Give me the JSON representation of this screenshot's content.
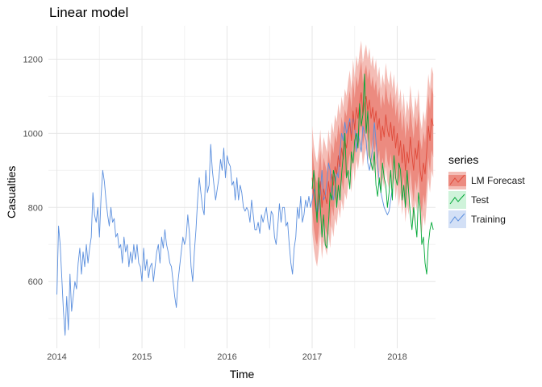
{
  "chart_data": {
    "type": "line",
    "title": "Linear model",
    "xlabel": "Time",
    "ylabel": "Casualties",
    "xlim": [
      2013.9,
      2018.45
    ],
    "ylim": [
      420,
      1290
    ],
    "x_ticks": [
      2014,
      2015,
      2016,
      2017,
      2018
    ],
    "y_ticks": [
      600,
      800,
      1000,
      1200
    ],
    "grid": true,
    "legend": {
      "title": "series",
      "position": "right"
    },
    "series": [
      {
        "name": "Training",
        "color": "#5B8FDE",
        "x_start": 2014.0,
        "x_step": 0.01923,
        "values": [
          565,
          750,
          700,
          610,
          520,
          455,
          560,
          470,
          620,
          520,
          560,
          600,
          580,
          650,
          690,
          620,
          680,
          640,
          700,
          650,
          690,
          720,
          840,
          780,
          760,
          800,
          720,
          830,
          900,
          870,
          820,
          780,
          750,
          800,
          760,
          770,
          720,
          730,
          690,
          700,
          650,
          720,
          680,
          700,
          640,
          680,
          650,
          700,
          660,
          700,
          650,
          640,
          600,
          690,
          630,
          660,
          610,
          640,
          650,
          600,
          640,
          680,
          700,
          650,
          720,
          690,
          740,
          700,
          680,
          650,
          640,
          600,
          560,
          530,
          600,
          640,
          680,
          720,
          700,
          720,
          780,
          730,
          640,
          600,
          680,
          740,
          820,
          880,
          840,
          800,
          780,
          900,
          840,
          860,
          970,
          900,
          860,
          820,
          850,
          880,
          930,
          900,
          960,
          880,
          940,
          920,
          910,
          860,
          870,
          820,
          880,
          820,
          860,
          840,
          800,
          790,
          800,
          790,
          760,
          820,
          780,
          740,
          740,
          760,
          730,
          780,
          760,
          780,
          800,
          760,
          740,
          790,
          780,
          720,
          700,
          750,
          810,
          760,
          800,
          800,
          750,
          760,
          700,
          650,
          620,
          690,
          720,
          800,
          770,
          830,
          760,
          780,
          820,
          800,
          830,
          800,
          820,
          850,
          830,
          780,
          800,
          840,
          900,
          820,
          830,
          870,
          920,
          900,
          840,
          820,
          850,
          900,
          880,
          950,
          1000,
          980,
          1030,
          1000,
          1020,
          1040,
          990,
          1040,
          1020,
          950,
          1000,
          980,
          950,
          1020,
          1000,
          980,
          920,
          900,
          930,
          960,
          1030,
          980,
          920,
          870,
          840,
          820,
          800,
          790,
          780,
          790,
          820,
          850
        ]
      },
      {
        "name": "Test",
        "color": "#00A836",
        "x_start": 2017.0,
        "x_step": 0.01923,
        "values": [
          850,
          900,
          820,
          760,
          880,
          800,
          720,
          780,
          700,
          690,
          760,
          840,
          820,
          900,
          880,
          800,
          860,
          820,
          890,
          940,
          1000,
          880,
          900,
          850,
          950,
          920,
          980,
          1000,
          960,
          1080,
          1020,
          1050,
          1160,
          1000,
          1060,
          940,
          920,
          900,
          950,
          860,
          830,
          880,
          840,
          920,
          880,
          860,
          800,
          840,
          900,
          820,
          940,
          880,
          860,
          920,
          900,
          820,
          860,
          800,
          900,
          840,
          780,
          740,
          800,
          760,
          720,
          840,
          800,
          700,
          720,
          650,
          620,
          700,
          740,
          760,
          740
        ]
      },
      {
        "name": "LM Forecast",
        "color": "#E04A3A",
        "x_start": 2017.0,
        "x_step": 0.01923,
        "values": [
          880,
          830,
          800,
          780,
          820,
          870,
          800,
          850,
          830,
          810,
          870,
          830,
          890,
          860,
          910,
          890,
          940,
          910,
          960,
          930,
          980,
          960,
          1000,
          1030,
          980,
          1060,
          1010,
          1070,
          1040,
          1080,
          1110,
          1050,
          1080,
          1100,
          1060,
          1090,
          1040,
          1070,
          1030,
          1060,
          1010,
          1040,
          980,
          1020,
          990,
          1050,
          1010,
          990,
          1030,
          980,
          1020,
          960,
          1000,
          940,
          980,
          920,
          970,
          900,
          950,
          920,
          990,
          940,
          900,
          960,
          930,
          980,
          900,
          870,
          920,
          890,
          950,
          1020,
          980,
          1040,
          1020
        ],
        "band80_halfwidth": 85,
        "band95_halfwidth": 140,
        "band80_color": "#EC8B80",
        "band95_color": "#F4BDB6"
      }
    ]
  }
}
